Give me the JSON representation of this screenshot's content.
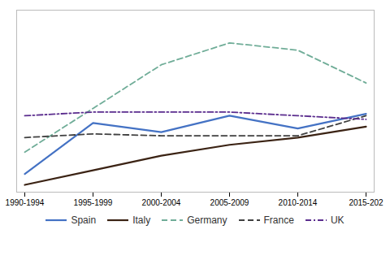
{
  "chart_data": {
    "type": "line",
    "categories": [
      "1990-1994",
      "1995-1999",
      "2000-2004",
      "2005-2009",
      "2010-2014",
      "2015-202"
    ],
    "series": [
      {
        "name": "Spain",
        "color": "#4472C4",
        "line_style": "solid",
        "values": [
          0.1,
          0.38,
          0.33,
          0.42,
          0.35,
          0.43
        ]
      },
      {
        "name": "Italy",
        "color": "#3B2314",
        "line_style": "solid",
        "values": [
          0.04,
          0.12,
          0.2,
          0.26,
          0.3,
          0.36
        ]
      },
      {
        "name": "Germany",
        "color": "#70AD98",
        "line_style": "dashed",
        "values": [
          0.22,
          0.46,
          0.7,
          0.82,
          0.78,
          0.6
        ]
      },
      {
        "name": "France",
        "color": "#404040",
        "line_style": "dashed",
        "values": [
          0.3,
          0.32,
          0.31,
          0.31,
          0.31,
          0.42
        ]
      },
      {
        "name": "UK",
        "color": "#5B2D8E",
        "line_style": "dashdot",
        "values": [
          0.42,
          0.44,
          0.44,
          0.44,
          0.42,
          0.4
        ]
      }
    ],
    "ylim": [
      0.0,
      1.0
    ],
    "yticks": [],
    "tick_labels": "x",
    "grid": false,
    "legend": "bottom"
  }
}
